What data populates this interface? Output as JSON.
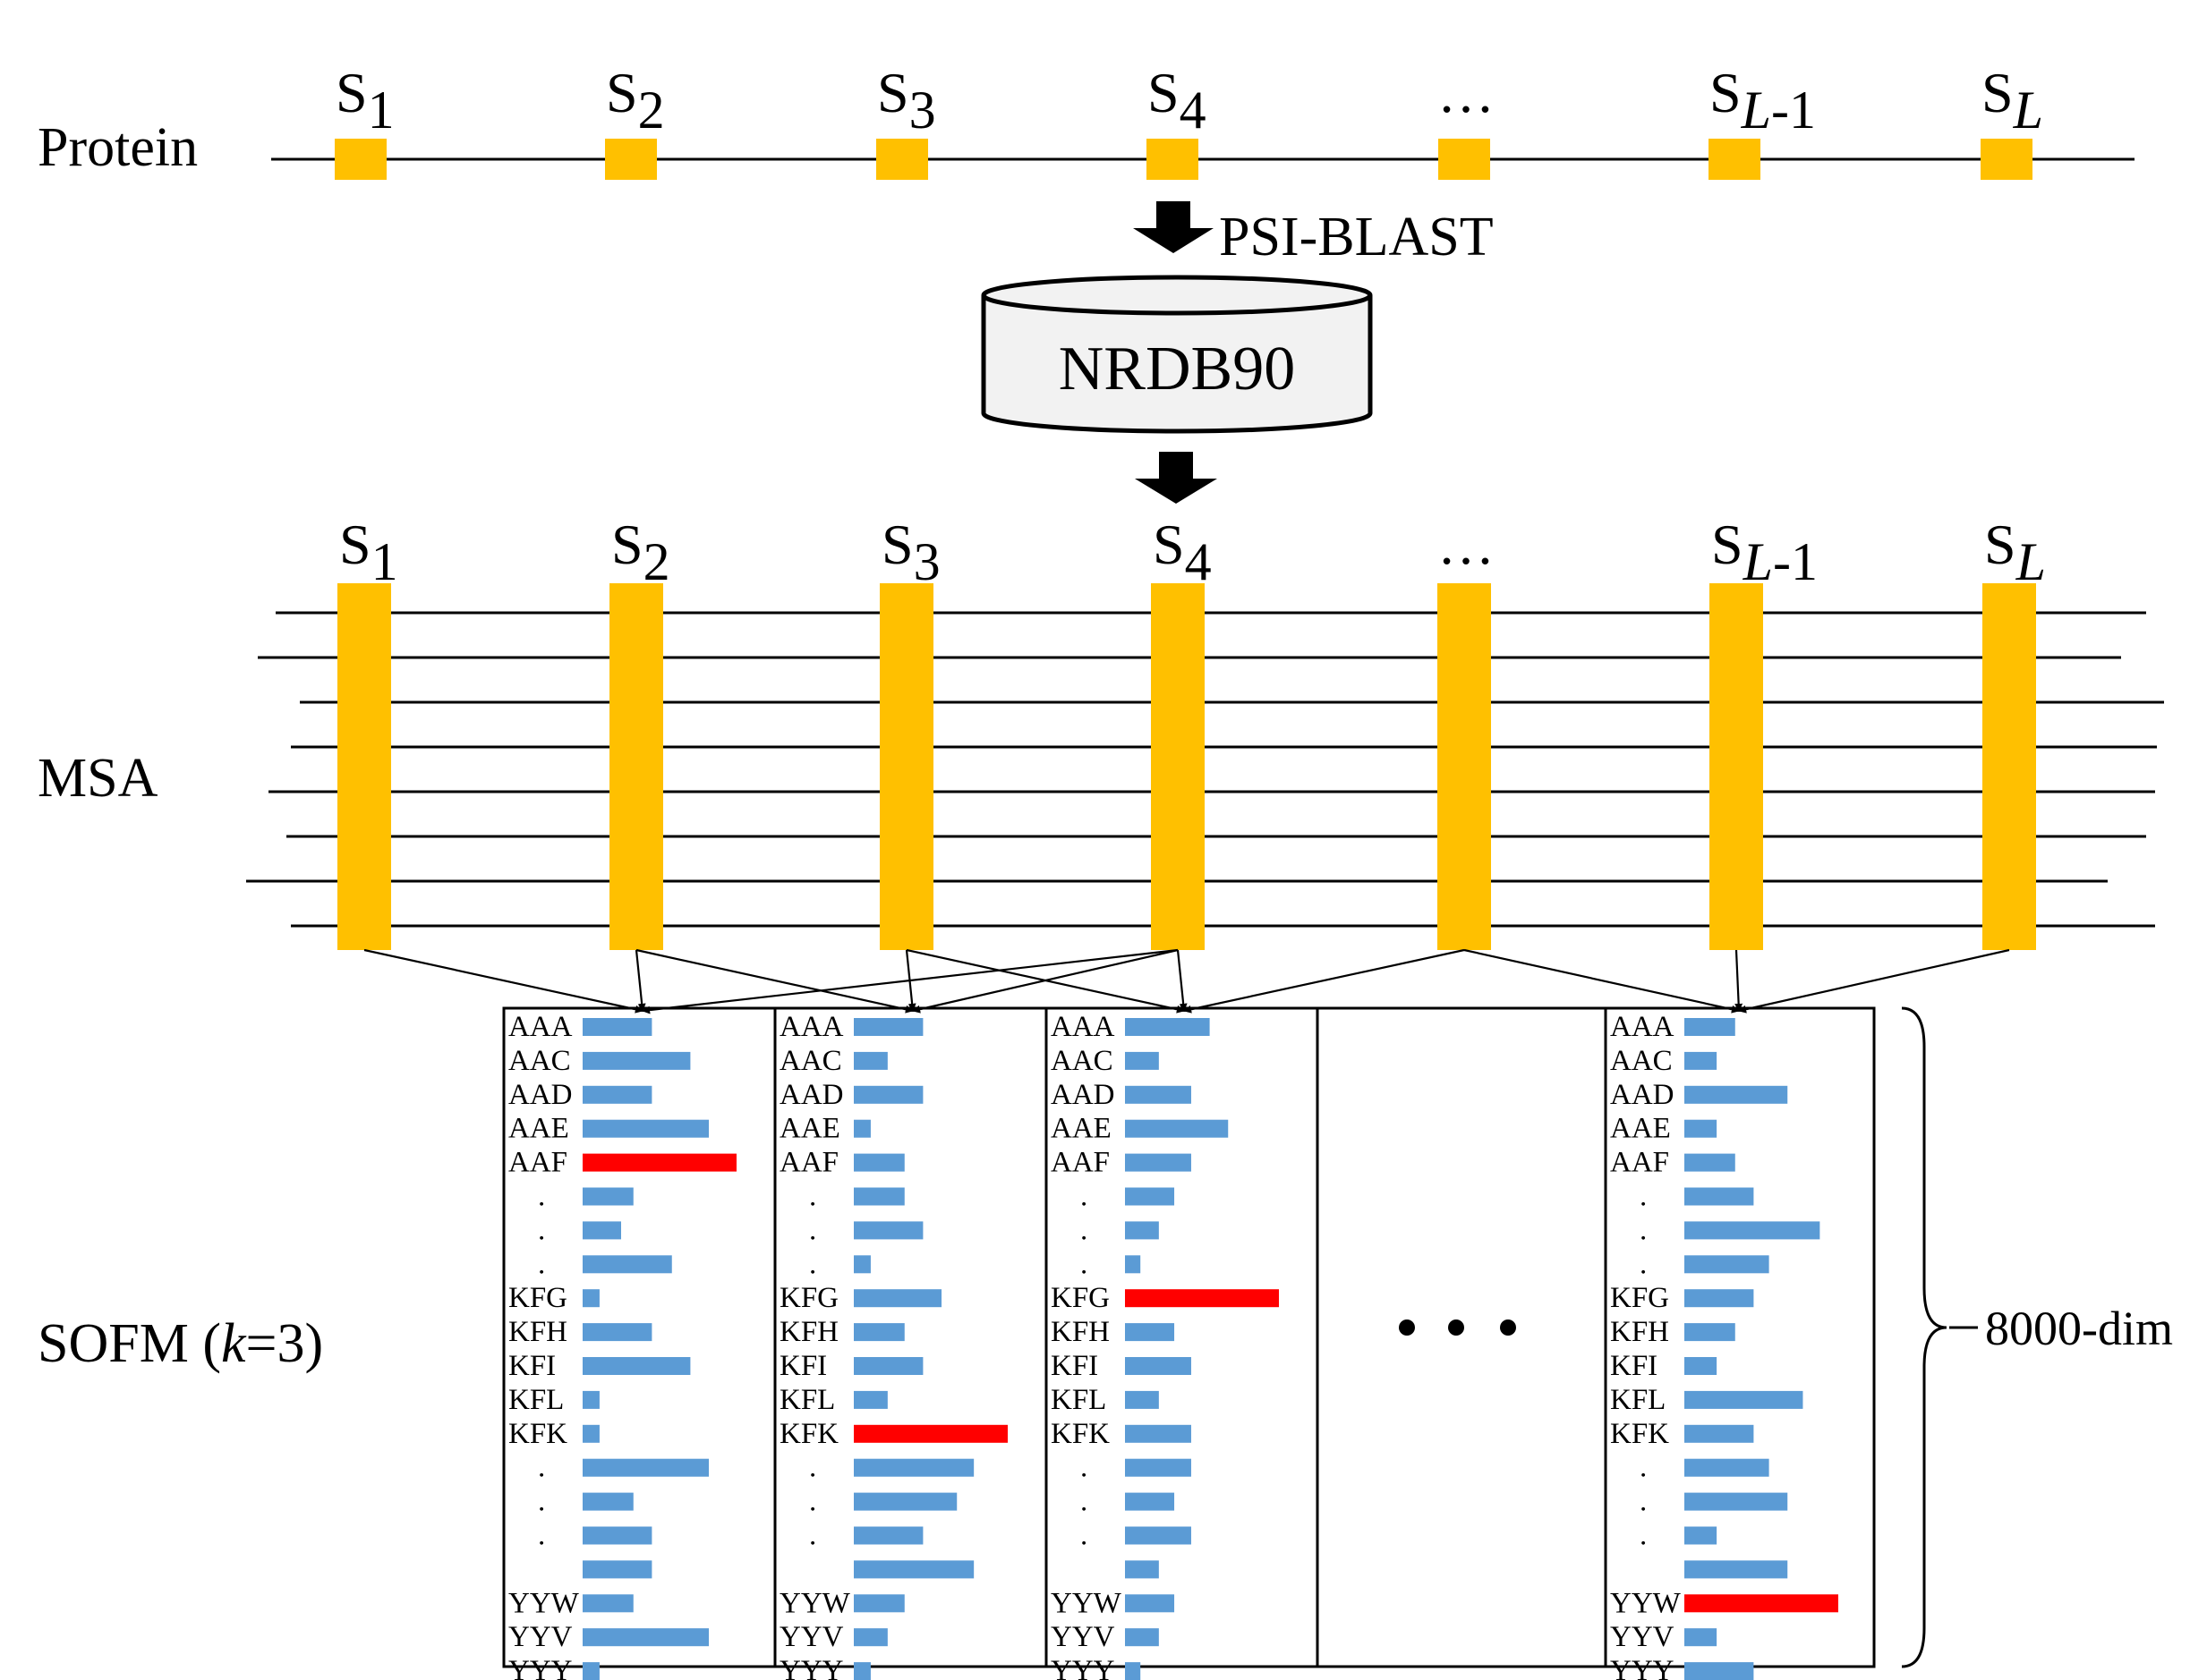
{
  "labels": {
    "protein": "Protein",
    "msa": "MSA",
    "sofm_prefix": "SOFM (",
    "sofm_k": "k",
    "sofm_suffix": "=3)",
    "psiblast": "PSI-BLAST",
    "database": "NRDB90",
    "dimension": "8000-dim",
    "ellipsis": "…"
  },
  "positions": [
    {
      "base": "S",
      "sub": "1",
      "sub_italic": false
    },
    {
      "base": "S",
      "sub": "2",
      "sub_italic": false
    },
    {
      "base": "S",
      "sub": "3",
      "sub_italic": false
    },
    {
      "base": "S",
      "sub": "4",
      "sub_italic": false
    },
    {
      "base": "…",
      "sub": "",
      "sub_italic": false
    },
    {
      "base": "S",
      "sub": "L",
      "sub_suffix": "-1",
      "sub_italic": true
    },
    {
      "base": "S",
      "sub": "L",
      "sub_italic": true
    }
  ],
  "colors": {
    "residue": "#FFC000",
    "bar": "#5B9BD5",
    "max_bar": "#FF0000",
    "line": "#000000"
  },
  "sofm_panels": [
    {
      "rows": [
        "AAA",
        "AAC",
        "AAD",
        "AAE",
        "AAF",
        ".",
        ".",
        ".",
        "KFG",
        "KFH",
        "KFI",
        "KFL",
        "KFK",
        ".",
        ".",
        ".",
        "",
        "YYW",
        "YYV",
        "YYY"
      ],
      "bars": [
        0.45,
        0.7,
        0.45,
        0.82,
        1.0,
        0.33,
        0.25,
        0.58,
        0.11,
        0.45,
        0.7,
        0.11,
        0.11,
        0.82,
        0.33,
        0.45,
        0.45,
        0.33,
        0.82,
        0.11
      ],
      "max_index": 4
    },
    {
      "rows": [
        "AAA",
        "AAC",
        "AAD",
        "AAE",
        "AAF",
        ".",
        ".",
        ".",
        "KFG",
        "KFH",
        "KFI",
        "KFL",
        "KFK",
        ".",
        ".",
        ".",
        "",
        "YYW",
        "YYV",
        "YYY"
      ],
      "bars": [
        0.45,
        0.22,
        0.45,
        0.11,
        0.33,
        0.33,
        0.45,
        0.11,
        0.57,
        0.33,
        0.45,
        0.22,
        1.0,
        0.78,
        0.67,
        0.45,
        0.78,
        0.33,
        0.22,
        0.11
      ],
      "max_index": 12
    },
    {
      "rows": [
        "AAA",
        "AAC",
        "AAD",
        "AAE",
        "AAF",
        ".",
        ".",
        ".",
        "KFG",
        "KFH",
        "KFI",
        "KFL",
        "KFK",
        ".",
        ".",
        ".",
        "",
        "YYW",
        "YYV",
        "YYY"
      ],
      "bars": [
        0.55,
        0.22,
        0.43,
        0.67,
        0.43,
        0.32,
        0.22,
        0.1,
        1.0,
        0.32,
        0.43,
        0.22,
        0.43,
        0.43,
        0.32,
        0.43,
        0.22,
        0.32,
        0.22,
        0.1
      ],
      "max_index": 8
    },
    {
      "rows": [
        "AAA",
        "AAC",
        "AAD",
        "AAE",
        "AAF",
        ".",
        ".",
        ".",
        "KFG",
        "KFH",
        "KFI",
        "KFL",
        "KFK",
        ".",
        ".",
        ".",
        "",
        "YYW",
        "YYV",
        "YYY"
      ],
      "bars": [
        0.33,
        0.21,
        0.67,
        0.21,
        0.33,
        0.45,
        0.88,
        0.55,
        0.45,
        0.33,
        0.21,
        0.77,
        0.45,
        0.55,
        0.67,
        0.21,
        0.67,
        1.0,
        0.21,
        0.45
      ],
      "max_index": 17
    }
  ]
}
